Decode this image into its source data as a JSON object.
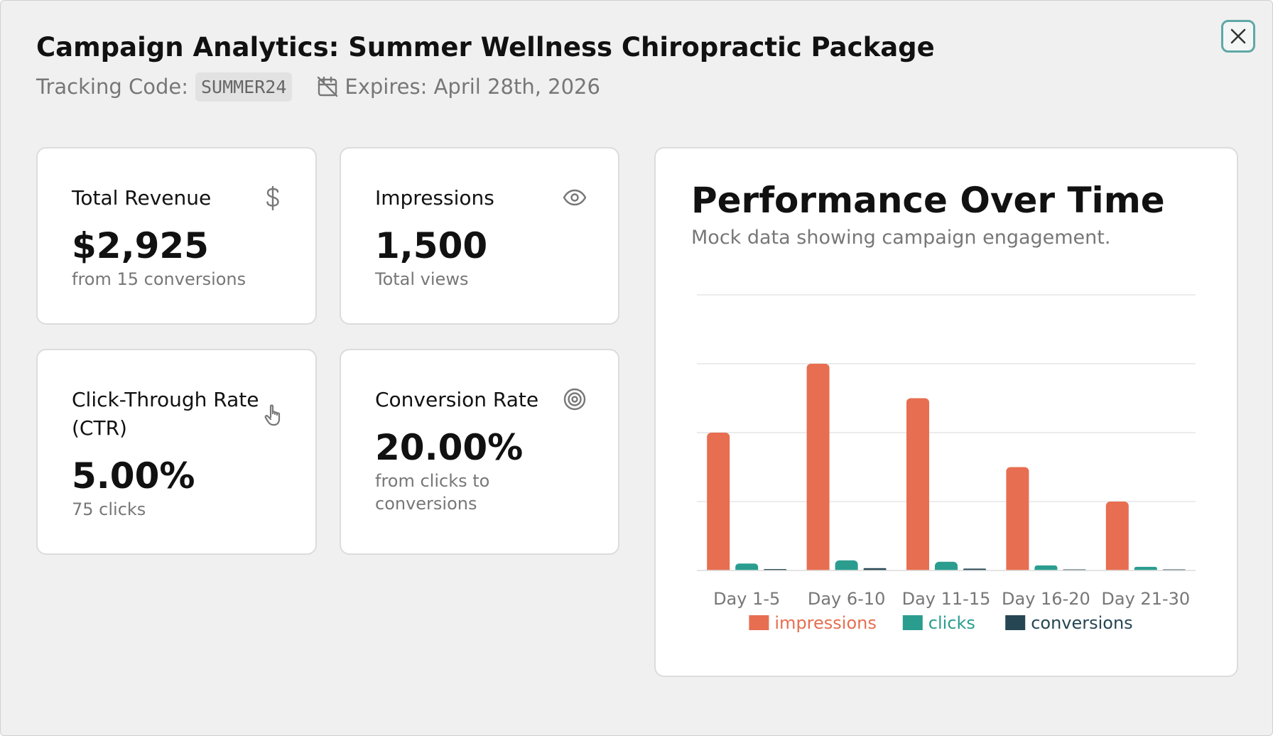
{
  "header": {
    "title": "Campaign Analytics: Summer Wellness Chiropractic Package",
    "tracking_label": "Tracking Code:",
    "tracking_code": "SUMMER24",
    "expires": "Expires: April 28th, 2026"
  },
  "cards": {
    "revenue": {
      "label": "Total Revenue",
      "value": "$2,925",
      "sub": "from 15 conversions",
      "icon": "dollar-icon"
    },
    "impressions": {
      "label": "Impressions",
      "value": "1,500",
      "sub": "Total views",
      "icon": "eye-icon"
    },
    "ctr": {
      "label": "Click-Through Rate (CTR)",
      "value": "5.00%",
      "sub": "75 clicks",
      "icon": "pointer-icon"
    },
    "conversion": {
      "label": "Conversion Rate",
      "value": "20.00%",
      "sub": "from clicks to conversions",
      "icon": "target-icon"
    }
  },
  "chart": {
    "title": "Performance Over Time",
    "subtitle": "Mock data showing campaign engagement."
  },
  "chart_data": {
    "type": "bar",
    "categories": [
      "Day 1-5",
      "Day 6-10",
      "Day 11-15",
      "Day 16-20",
      "Day 21-30"
    ],
    "series": [
      {
        "name": "impressions",
        "values": [
          300,
          450,
          375,
          225,
          150
        ],
        "color": "#e76e50"
      },
      {
        "name": "clicks",
        "values": [
          15,
          22,
          19,
          11,
          8
        ],
        "color": "#2a9d8f"
      },
      {
        "name": "conversions",
        "values": [
          3,
          5,
          4,
          2,
          1
        ],
        "color": "#264653"
      }
    ],
    "ylim": [
      0,
      600
    ],
    "grid": true,
    "legend": "bottom"
  },
  "colors": {
    "accent": "#5fa8a6",
    "impressions": "#e76e50",
    "clicks": "#2a9d8f",
    "conversions": "#264653"
  }
}
